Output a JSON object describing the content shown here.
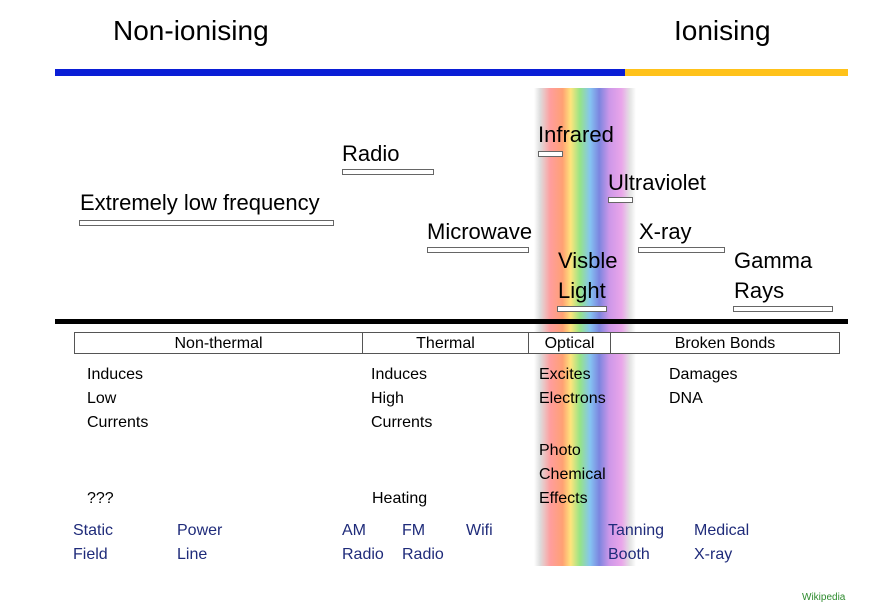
{
  "header": {
    "non_ionising": "Non-ionising",
    "ionising": "Ionising"
  },
  "colors": {
    "non_ionising_bar": "#0a1ed6",
    "ionising_bar": "#ffc21a",
    "example_text": "#1f2b7a",
    "credit": "#2e8b2e"
  },
  "bands": {
    "elf": "Extremely low frequency",
    "radio": "Radio",
    "microwave": "Microwave",
    "infrared": "Infrared",
    "visible_1": "Visble",
    "visible_2": "Light",
    "ultraviolet": "Ultraviolet",
    "xray": "X-ray",
    "gamma_1": "Gamma",
    "gamma_2": "Rays"
  },
  "categories": [
    "Non-thermal",
    "Thermal",
    "Optical",
    "Broken Bonds"
  ],
  "effects": {
    "non_thermal": [
      "Induces",
      "Low",
      "Currents"
    ],
    "non_thermal_extra": "???",
    "thermal": [
      "Induces",
      "High",
      "Currents"
    ],
    "thermal_extra": "Heating",
    "optical": [
      "Excites",
      "Electrons"
    ],
    "optical_extra": [
      "Photo",
      "Chemical",
      "Effects"
    ],
    "broken": [
      "Damages",
      "DNA"
    ]
  },
  "examples": {
    "static": [
      "Static",
      "Field"
    ],
    "power": [
      "Power",
      "Line"
    ],
    "am": [
      "AM",
      "Radio"
    ],
    "fm": [
      "FM",
      "Radio"
    ],
    "wifi": "Wifi",
    "tanning": [
      "Tanning",
      "Booth"
    ],
    "medical": [
      "Medical",
      "X-ray"
    ]
  },
  "credit": "Wikipedia"
}
